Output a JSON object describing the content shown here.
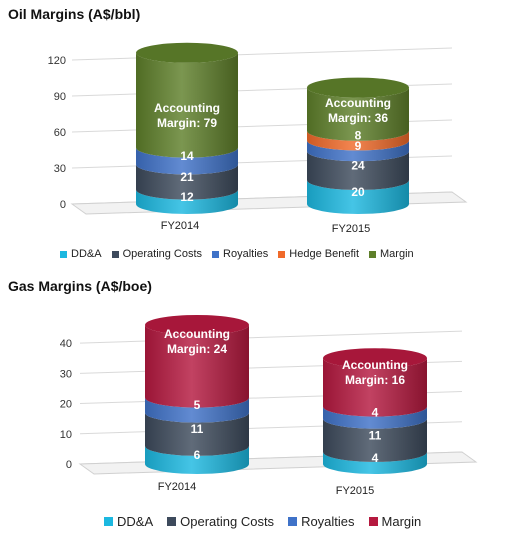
{
  "chart_data": [
    {
      "type": "bar",
      "stacked": true,
      "title": "Oil Margins (A$/bbl)",
      "categories": [
        "FY2014",
        "FY2015"
      ],
      "ylim": [
        0,
        120
      ],
      "yticks": [
        "0",
        "30",
        "60",
        "90",
        "120"
      ],
      "grid": true,
      "legend_position": "bottom",
      "series": [
        {
          "name": "DD&A",
          "color": "#1CB8E0",
          "values": [
            12,
            20
          ],
          "labels": [
            "12",
            "20"
          ]
        },
        {
          "name": "Operating Costs",
          "color": "#3D4A5C",
          "values": [
            21,
            24
          ],
          "labels": [
            "21",
            "24"
          ]
        },
        {
          "name": "Royalties",
          "color": "#3F72C8",
          "values": [
            14,
            9
          ],
          "labels": [
            "14",
            "9"
          ]
        },
        {
          "name": "Hedge Benefit",
          "color": "#F06A2A",
          "values": [
            0,
            8
          ],
          "labels": [
            "",
            "8"
          ]
        },
        {
          "name": "Margin",
          "color": "#5E7F2A",
          "values": [
            79,
            36
          ],
          "labels": [
            "Accounting Margin: 79",
            "Accounting Margin: 36"
          ]
        }
      ]
    },
    {
      "type": "bar",
      "stacked": true,
      "title": "Gas Margins (A$/boe)",
      "categories": [
        "FY2014",
        "FY2015"
      ],
      "ylim": [
        0,
        45
      ],
      "yticks": [
        "0",
        "10",
        "20",
        "30",
        "40"
      ],
      "grid": true,
      "legend_position": "bottom",
      "series": [
        {
          "name": "DD&A",
          "color": "#1CB8E0",
          "values": [
            6,
            4
          ],
          "labels": [
            "6",
            "4"
          ]
        },
        {
          "name": "Operating Costs",
          "color": "#3D4A5C",
          "values": [
            11,
            11
          ],
          "labels": [
            "11",
            "11"
          ]
        },
        {
          "name": "Royalties",
          "color": "#3F72C8",
          "values": [
            5,
            4
          ],
          "labels": [
            "5",
            "4"
          ]
        },
        {
          "name": "Margin",
          "color": "#B5193F",
          "values": [
            24,
            16
          ],
          "labels": [
            "Accounting Margin: 24",
            "Accounting Margin: 16"
          ]
        }
      ]
    }
  ]
}
